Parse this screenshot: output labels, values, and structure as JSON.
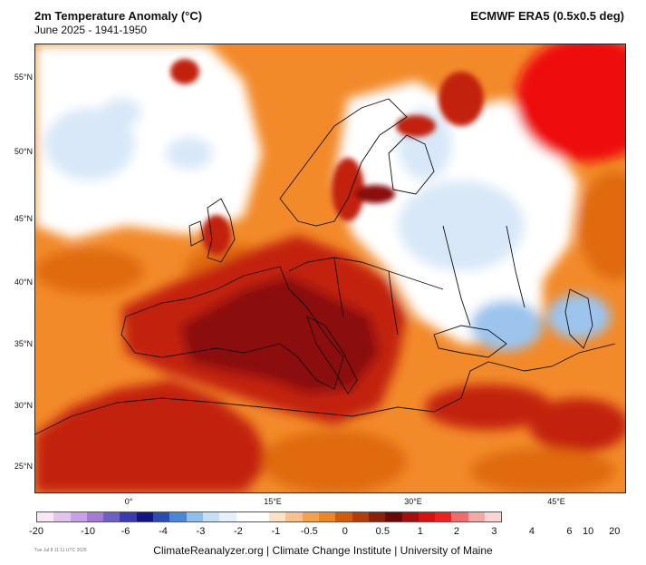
{
  "header": {
    "title": "2m Temperature Anomaly (°C)",
    "subtitle": "June 2025 - 1941-1950",
    "dataset": "ECMWF ERA5 (0.5x0.5 deg)"
  },
  "map": {
    "lat_labels": [
      "55°N",
      "50°N",
      "45°N",
      "40°N",
      "35°N",
      "30°N",
      "25°N"
    ],
    "lon_labels": [
      "0°",
      "15°E",
      "30°E",
      "45°E"
    ],
    "fill_colors": {
      "strong_warm": "#8b0a0a",
      "warm": "#c22010",
      "mild_warm": "#e06a10",
      "slight_warm": "#f28a2a",
      "neutral": "#ffffff",
      "slight_cool": "#d8e8f8",
      "cool": "#9cc4ec",
      "very_warm": "#ee1010"
    }
  },
  "colorbar": {
    "colors": [
      "#fbe6f3",
      "#e4c4ee",
      "#c8a0e4",
      "#a67ad6",
      "#6d5ec8",
      "#3b3ab4",
      "#13138a",
      "#2b4bb8",
      "#4a86dc",
      "#8ebfee",
      "#c4dff7",
      "#e4f0fb",
      "#ffffff",
      "#ffffff",
      "#fde1c4",
      "#fbc08c",
      "#f6a04e",
      "#ef8424",
      "#d45a0a",
      "#b73b06",
      "#8e1e04",
      "#6a0806",
      "#a60e0e",
      "#d81010",
      "#f41e1e",
      "#f46a6a",
      "#f4a8a8",
      "#fcd4d4"
    ],
    "labels": [
      "-20",
      "-10",
      "-6",
      "-4",
      "-3",
      "-2",
      "-1",
      "-0.5",
      "0",
      "0.5",
      "1",
      "2",
      "3",
      "4",
      "6",
      "10",
      "20"
    ],
    "label_positions": [
      0,
      0.088,
      0.152,
      0.216,
      0.28,
      0.344,
      0.408,
      0.465,
      0.526,
      0.59,
      0.654,
      0.716,
      0.78,
      0.844,
      0.908,
      0.94,
      0.985
    ]
  },
  "footer": {
    "credit": "ClimateReanalyzer.org | Climate Change Institute | University of Maine",
    "stamp": "Tue Jul 8 11:11 UTC 2025"
  }
}
